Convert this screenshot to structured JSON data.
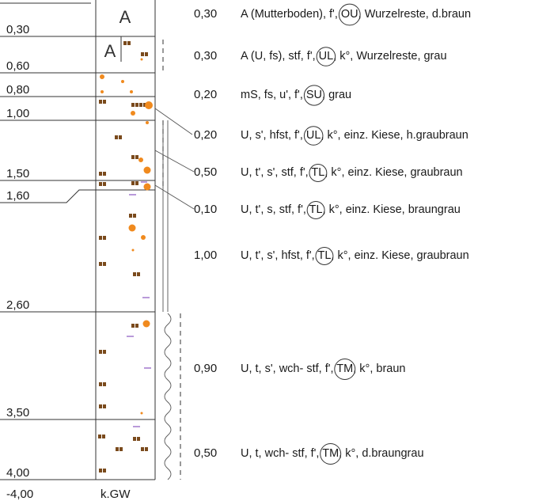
{
  "depth_labels": [
    "0,30",
    "0,60",
    "0,80",
    "1,00",
    "1,50",
    "1,60",
    "2,60",
    "3,50",
    "4,00"
  ],
  "bottom_depth": "-4,00",
  "groundwater_label": "k.GW",
  "column_headers": [
    "A",
    "A"
  ],
  "layers": [
    {
      "thickness": "0,30",
      "pre": "A (Mutterboden), f', ",
      "code": "OU",
      "post": ", Wurzelreste, d.braun"
    },
    {
      "thickness": "0,30",
      "pre": "A (U, fs), stf, f', ",
      "code": "UL",
      "post": ", k°, Wurzelreste, grau"
    },
    {
      "thickness": "0,20",
      "pre": "mS, fs, u', f', ",
      "code": "SU",
      "post": ", grau"
    },
    {
      "thickness": "0,20",
      "pre": "U, s', hfst, f', ",
      "code": "UL",
      "post": ", k°, einz. Kiese, h.graubraun"
    },
    {
      "thickness": "0,50",
      "pre": "U, t', s', stf, f', ",
      "code": "TL",
      "post": ", k°, einz. Kiese, graubraun"
    },
    {
      "thickness": "0,10",
      "pre": "U, t', s, stf, f', ",
      "code": "TL",
      "post": ", k°, einz. Kiese, braungrau"
    },
    {
      "thickness": "1,00",
      "pre": "U, t', s', hfst, f', ",
      "code": "TL",
      "post": ", k°, einz. Kiese, graubraun"
    },
    {
      "thickness": "0,90",
      "pre": "U, t, s', wch- stf, f', ",
      "code": "TM",
      "post": ", k°, braun"
    },
    {
      "thickness": "0,50",
      "pre": "U, t, wch- stf, f', ",
      "code": "TM",
      "post": ", k°, d.braungrau"
    }
  ],
  "colors": {
    "silt": "#7a4a1c",
    "sand": "#f08a1e",
    "clay": "#9b6fc9",
    "line": "#333333"
  }
}
